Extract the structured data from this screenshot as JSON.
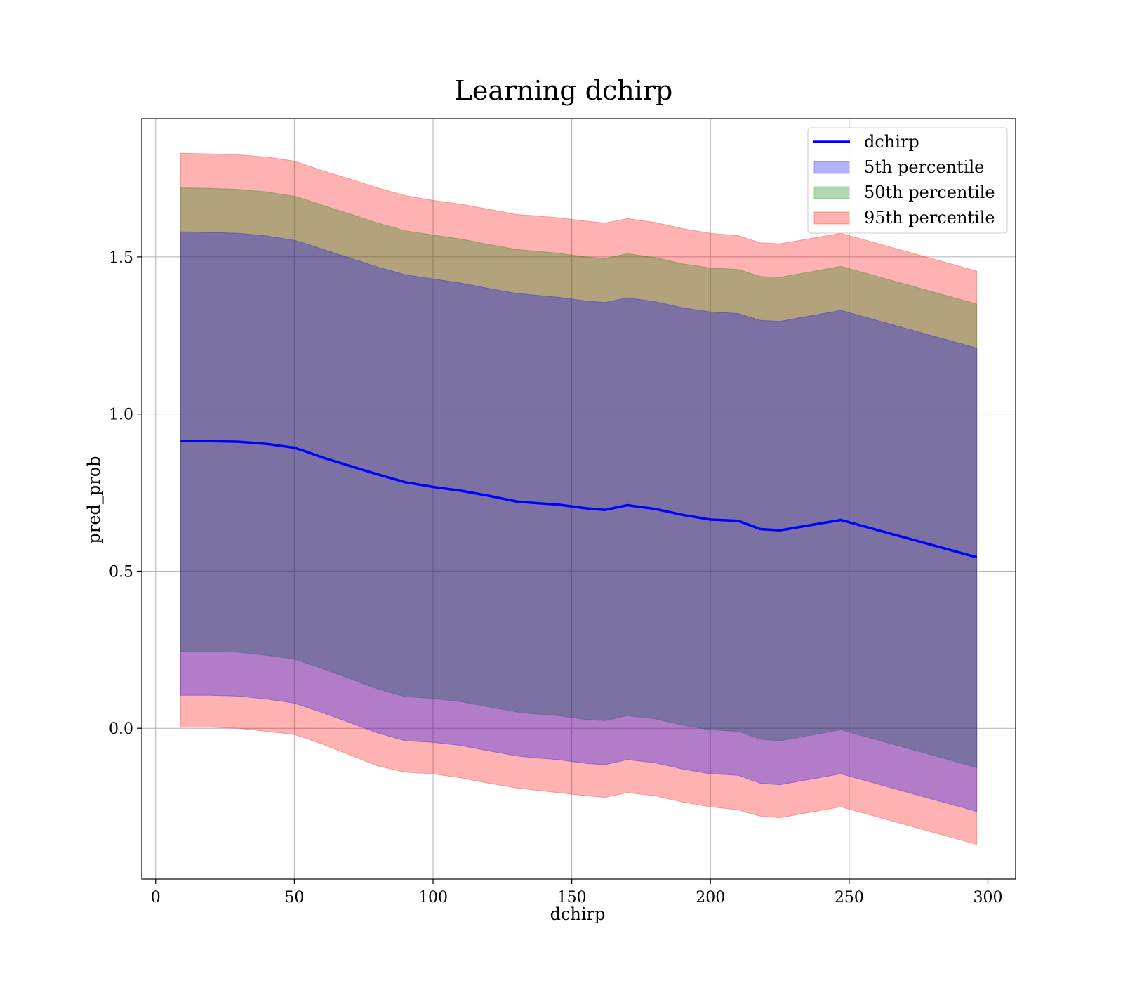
{
  "chart_data": {
    "type": "area",
    "title": "Learning dchirp",
    "xlabel": "dchirp",
    "ylabel": "pred_prob",
    "xlim": [
      -5,
      310
    ],
    "ylim": [
      -0.48,
      1.94
    ],
    "xticks": [
      0,
      50,
      100,
      150,
      200,
      250,
      300
    ],
    "yticks": [
      0.0,
      0.5,
      1.0,
      1.5
    ],
    "xtick_labels": [
      "0",
      "50",
      "100",
      "150",
      "200",
      "250",
      "300"
    ],
    "ytick_labels": [
      "0.0",
      "0.5",
      "1.0",
      "1.5"
    ],
    "grid": true,
    "legend_position": "top-right",
    "x": [
      9,
      20,
      30,
      40,
      50,
      55,
      60,
      70,
      80,
      90,
      100,
      110,
      120,
      130,
      135,
      145,
      155,
      162,
      170,
      180,
      190,
      200,
      210,
      218,
      225,
      247,
      296
    ],
    "line": {
      "name": "dchirp",
      "color": "#0000ff",
      "values": [
        0.915,
        0.914,
        0.912,
        0.905,
        0.893,
        0.878,
        0.862,
        0.835,
        0.808,
        0.783,
        0.768,
        0.756,
        0.74,
        0.722,
        0.718,
        0.712,
        0.7,
        0.695,
        0.71,
        0.698,
        0.679,
        0.664,
        0.66,
        0.634,
        0.63,
        0.663,
        0.544
      ]
    },
    "bands": [
      {
        "name": "95th percentile",
        "color": "#ff0000",
        "opacity": 0.3,
        "lower": [
          0.003,
          0.003,
          0.0,
          -0.01,
          -0.02,
          -0.035,
          -0.05,
          -0.085,
          -0.12,
          -0.14,
          -0.145,
          -0.158,
          -0.175,
          -0.19,
          -0.195,
          -0.205,
          -0.215,
          -0.22,
          -0.205,
          -0.215,
          -0.235,
          -0.25,
          -0.26,
          -0.28,
          -0.285,
          -0.25,
          -0.37
        ],
        "upper": [
          1.83,
          1.828,
          1.825,
          1.818,
          1.805,
          1.79,
          1.775,
          1.748,
          1.72,
          1.695,
          1.68,
          1.668,
          1.652,
          1.635,
          1.632,
          1.625,
          1.614,
          1.608,
          1.622,
          1.61,
          1.59,
          1.575,
          1.568,
          1.545,
          1.542,
          1.575,
          1.455
        ]
      },
      {
        "name": "50th percentile",
        "color": "#008000",
        "opacity": 0.3,
        "lower": [
          0.245,
          0.245,
          0.242,
          0.232,
          0.22,
          0.205,
          0.19,
          0.158,
          0.125,
          0.1,
          0.095,
          0.085,
          0.068,
          0.052,
          0.047,
          0.04,
          0.028,
          0.024,
          0.04,
          0.03,
          0.01,
          -0.005,
          -0.01,
          -0.035,
          -0.04,
          -0.005,
          -0.125
        ],
        "upper": [
          1.72,
          1.718,
          1.715,
          1.707,
          1.693,
          1.68,
          1.665,
          1.637,
          1.608,
          1.583,
          1.57,
          1.557,
          1.54,
          1.524,
          1.52,
          1.512,
          1.5,
          1.495,
          1.51,
          1.498,
          1.478,
          1.465,
          1.46,
          1.438,
          1.435,
          1.47,
          1.35
        ]
      },
      {
        "name": "5th percentile",
        "color": "#0000ff",
        "opacity": 0.3,
        "lower": [
          0.105,
          0.105,
          0.102,
          0.093,
          0.08,
          0.065,
          0.05,
          0.018,
          -0.015,
          -0.04,
          -0.045,
          -0.055,
          -0.072,
          -0.088,
          -0.093,
          -0.1,
          -0.112,
          -0.116,
          -0.1,
          -0.11,
          -0.13,
          -0.145,
          -0.15,
          -0.175,
          -0.18,
          -0.145,
          -0.265
        ],
        "upper": [
          1.58,
          1.578,
          1.575,
          1.567,
          1.553,
          1.54,
          1.525,
          1.497,
          1.468,
          1.443,
          1.43,
          1.417,
          1.4,
          1.384,
          1.38,
          1.372,
          1.36,
          1.355,
          1.37,
          1.358,
          1.338,
          1.325,
          1.32,
          1.298,
          1.295,
          1.33,
          1.21
        ]
      }
    ],
    "legend": [
      {
        "label": "dchirp",
        "kind": "line",
        "color": "#0000ff"
      },
      {
        "label": "5th percentile",
        "kind": "patch",
        "color": "#0000ff"
      },
      {
        "label": "50th percentile",
        "kind": "patch",
        "color": "#008000"
      },
      {
        "label": "95th percentile",
        "kind": "patch",
        "color": "#ff0000"
      }
    ]
  }
}
